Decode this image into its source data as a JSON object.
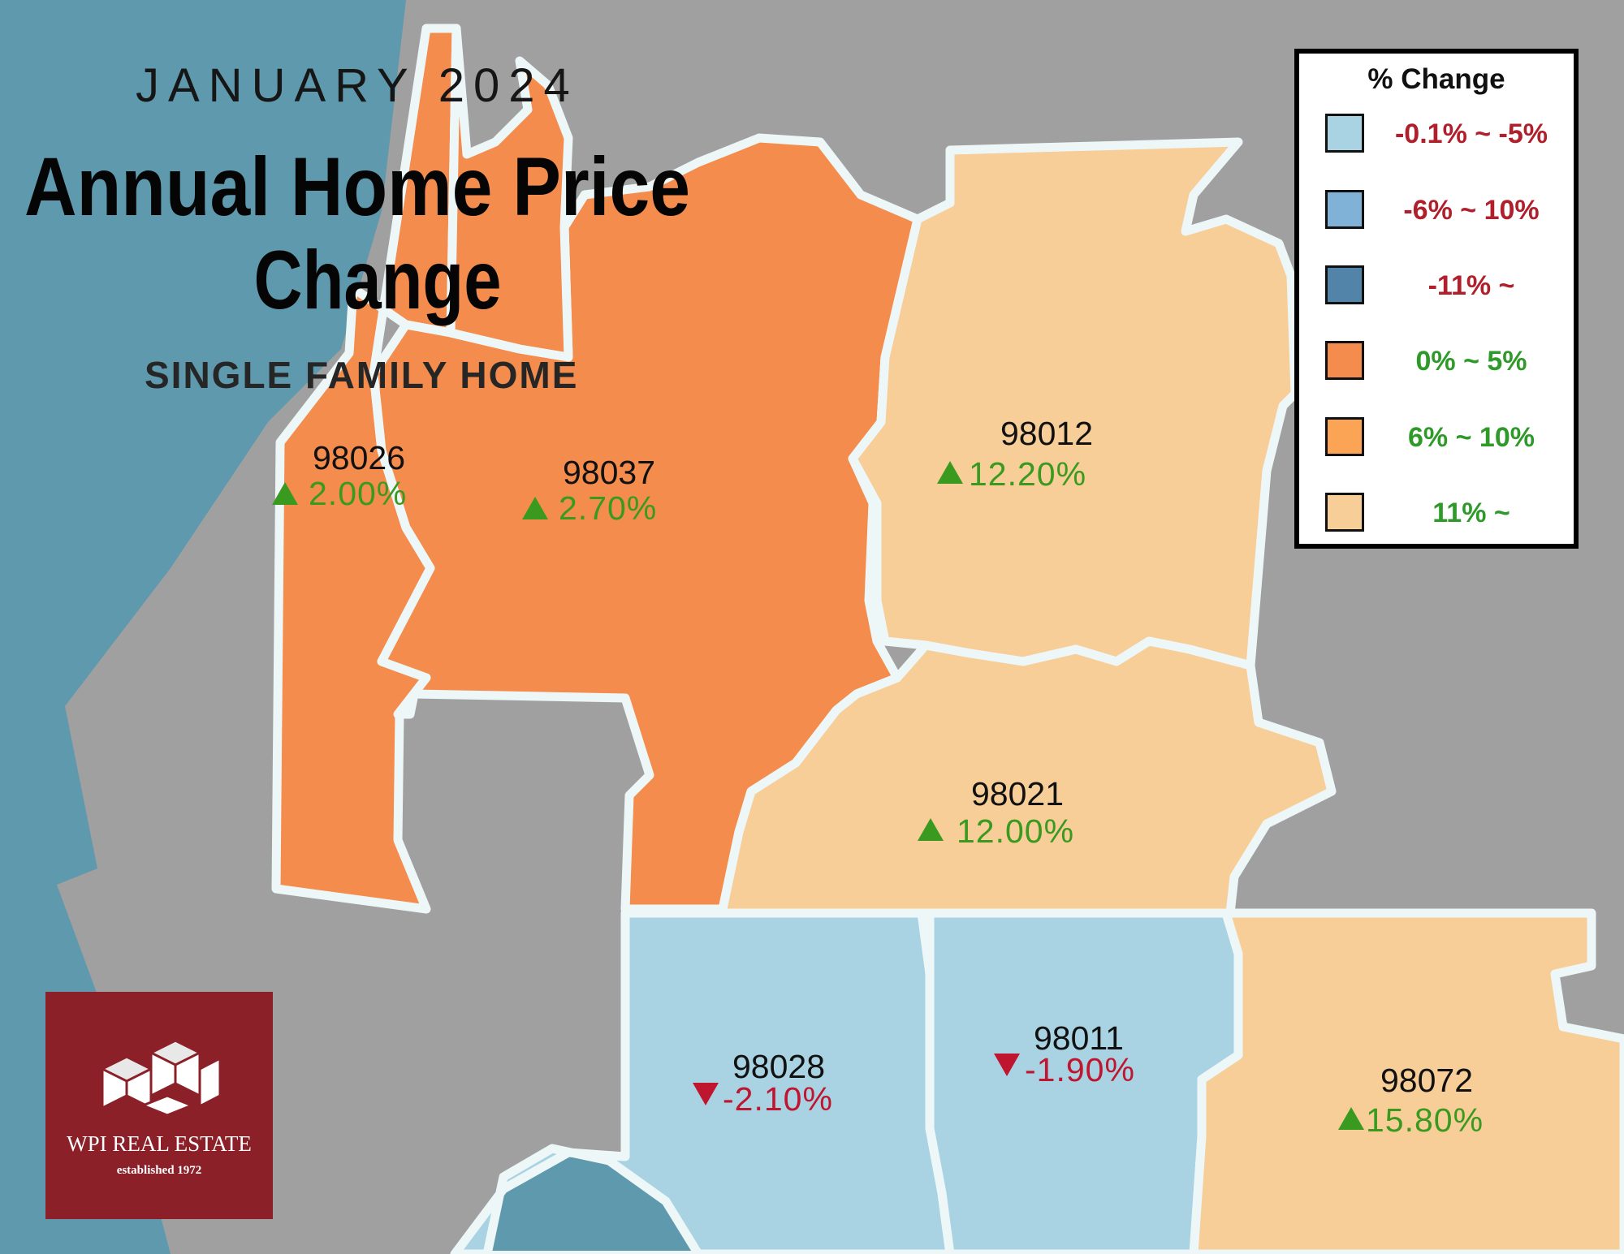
{
  "header": {
    "month": "JANUARY 2024",
    "title_line1": "Annual Home Price",
    "title_line2": "Change",
    "subtitle": "SINGLE FAMILY HOME"
  },
  "legend": {
    "title": "% Change",
    "items": [
      {
        "label": "-0.1% ~ -5%",
        "color": "#a9d3e3",
        "label_color": "#b0202c"
      },
      {
        "label": "-6% ~ 10%",
        "color": "#7fb2d6",
        "label_color": "#b0202c"
      },
      {
        "label": "-11% ~",
        "color": "#5284aa",
        "label_color": "#b0202c"
      },
      {
        "label": "0% ~ 5%",
        "color": "#f38c4c",
        "label_color": "#2f9a2a"
      },
      {
        "label": "6% ~ 10%",
        "color": "#fba455",
        "label_color": "#2f9a2a"
      },
      {
        "label": "11% ~",
        "color": "#f7cd98",
        "label_color": "#2f9a2a"
      }
    ]
  },
  "regions": [
    {
      "zip": "98026",
      "change": "2.00%",
      "direction": "up",
      "value": 2.0
    },
    {
      "zip": "98037",
      "change": "2.70%",
      "direction": "up",
      "value": 2.7
    },
    {
      "zip": "98012",
      "change": "12.20%",
      "direction": "up",
      "value": 12.2
    },
    {
      "zip": "98021",
      "change": "12.00%",
      "direction": "up",
      "value": 12.0
    },
    {
      "zip": "98028",
      "change": "-2.10%",
      "direction": "down",
      "value": -2.1
    },
    {
      "zip": "98011",
      "change": "-1.90%",
      "direction": "down",
      "value": -1.9
    },
    {
      "zip": "98072",
      "change": "15.80%",
      "direction": "up",
      "value": 15.8
    }
  ],
  "logo": {
    "name": "WPI REAL ESTATE",
    "tagline": "established 1972",
    "color": "#8b2028"
  },
  "colors": {
    "water": "#5e99ae",
    "land": "#a0a0a0",
    "border": "#eef7f8",
    "up": "#3a9a1f",
    "down": "#c0152f"
  }
}
